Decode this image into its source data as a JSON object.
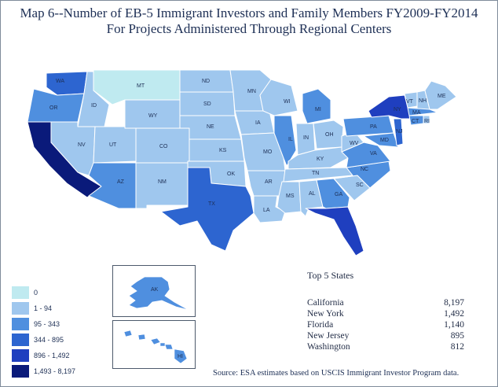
{
  "title": {
    "line1": "Map 6--Number of EB-5 Immigrant Investors and Family Members FY2009-FY2014",
    "line2": "For Projects Administered Through Regional Centers"
  },
  "colors": {
    "c0": "#bfeaf0",
    "c1": "#9fc7ee",
    "c2": "#4f8fdf",
    "c3": "#2d65d0",
    "c4": "#1f3fbf",
    "c5": "#0a1a7a"
  },
  "legend": {
    "items": [
      {
        "label": "0",
        "color_key": "c0"
      },
      {
        "label": "1 - 94",
        "color_key": "c1"
      },
      {
        "label": "95 - 343",
        "color_key": "c2"
      },
      {
        "label": "344 - 895",
        "color_key": "c3"
      },
      {
        "label": "896 - 1,492",
        "color_key": "c4"
      },
      {
        "label": "1,493 - 8,197",
        "color_key": "c5"
      }
    ]
  },
  "top5": {
    "title": "Top 5 States",
    "rows": [
      {
        "state": "California",
        "value": "8,197"
      },
      {
        "state": "New York",
        "value": "1,492"
      },
      {
        "state": "Florida",
        "value": "1,140"
      },
      {
        "state": "New Jersey",
        "value": "895"
      },
      {
        "state": "Washington",
        "value": "812"
      }
    ]
  },
  "source": "Source: ESA estimates based on USCIS Immigrant Investor Program data.",
  "states": {
    "WA": {
      "label": "WA",
      "color_key": "c3"
    },
    "OR": {
      "label": "OR",
      "color_key": "c2"
    },
    "CA": {
      "label": "",
      "color_key": "c5"
    },
    "ID": {
      "label": "ID",
      "color_key": "c1"
    },
    "NV": {
      "label": "NV",
      "color_key": "c1"
    },
    "MT": {
      "label": "MT",
      "color_key": "c0"
    },
    "WY": {
      "label": "WY",
      "color_key": "c1"
    },
    "UT": {
      "label": "UT",
      "color_key": "c1"
    },
    "CO": {
      "label": "CO",
      "color_key": "c1"
    },
    "AZ": {
      "label": "AZ",
      "color_key": "c2"
    },
    "NM": {
      "label": "NM",
      "color_key": "c1"
    },
    "ND": {
      "label": "ND",
      "color_key": "c1"
    },
    "SD": {
      "label": "SD",
      "color_key": "c1"
    },
    "NE": {
      "label": "NE",
      "color_key": "c1"
    },
    "KS": {
      "label": "KS",
      "color_key": "c1"
    },
    "OK": {
      "label": "OK",
      "color_key": "c1"
    },
    "TX": {
      "label": "TX",
      "color_key": "c3"
    },
    "MN": {
      "label": "MN",
      "color_key": "c1"
    },
    "IA": {
      "label": "IA",
      "color_key": "c1"
    },
    "MO": {
      "label": "MO",
      "color_key": "c1"
    },
    "AR": {
      "label": "AR",
      "color_key": "c1"
    },
    "LA": {
      "label": "LA",
      "color_key": "c1"
    },
    "WI": {
      "label": "WI",
      "color_key": "c1"
    },
    "IL": {
      "label": "IL",
      "color_key": "c2"
    },
    "MI": {
      "label": "MI",
      "color_key": "c2"
    },
    "IN": {
      "label": "IN",
      "color_key": "c1"
    },
    "OH": {
      "label": "OH",
      "color_key": "c1"
    },
    "KY": {
      "label": "KY",
      "color_key": "c1"
    },
    "TN": {
      "label": "TN",
      "color_key": "c1"
    },
    "MS": {
      "label": "MS",
      "color_key": "c1"
    },
    "AL": {
      "label": "AL",
      "color_key": "c1"
    },
    "GA": {
      "label": "GA",
      "color_key": "c2"
    },
    "FL": {
      "label": "",
      "color_key": "c4"
    },
    "SC": {
      "label": "SC",
      "color_key": "c1"
    },
    "NC": {
      "label": "NC",
      "color_key": "c2"
    },
    "VA": {
      "label": "VA",
      "color_key": "c2"
    },
    "WV": {
      "label": "WV",
      "color_key": "c1"
    },
    "PA": {
      "label": "PA",
      "color_key": "c2"
    },
    "NY": {
      "label": "NY",
      "color_key": "c4"
    },
    "MD": {
      "label": "MD",
      "color_key": "c2"
    },
    "NJ": {
      "label": "NJ",
      "color_key": "c3"
    },
    "VT": {
      "label": "VT",
      "color_key": "c1"
    },
    "NH": {
      "label": "NH",
      "color_key": "c1"
    },
    "ME": {
      "label": "ME",
      "color_key": "c1"
    },
    "MA": {
      "label": "MA",
      "color_key": "c2"
    },
    "CT": {
      "label": "CT",
      "color_key": "c2"
    },
    "RI": {
      "label": "RI",
      "color_key": "c1"
    },
    "AK": {
      "label": "AK",
      "color_key": "c2"
    },
    "HI": {
      "label": "HI",
      "color_key": "c2"
    }
  }
}
